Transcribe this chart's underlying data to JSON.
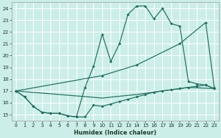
{
  "xlabel": "Humidex (Indice chaleur)",
  "bg_color": "#cceee8",
  "line_color": "#1a7060",
  "grid_color": "#ffffff",
  "xlim": [
    -0.5,
    23.5
  ],
  "ylim": [
    14.5,
    24.5
  ],
  "xticks": [
    0,
    1,
    2,
    3,
    4,
    5,
    6,
    7,
    8,
    9,
    10,
    11,
    12,
    13,
    14,
    15,
    16,
    17,
    18,
    19,
    20,
    21,
    22,
    23
  ],
  "yticks": [
    15,
    16,
    17,
    18,
    19,
    20,
    21,
    22,
    23,
    24
  ],
  "line_jagged_low_x": [
    0,
    1,
    2,
    3,
    4,
    5,
    6,
    7,
    8,
    9,
    10,
    11,
    12,
    13,
    14,
    15,
    16,
    17,
    18,
    19,
    20,
    21,
    22,
    23
  ],
  "line_jagged_low_y": [
    17.0,
    16.5,
    15.7,
    15.2,
    15.1,
    15.1,
    14.9,
    14.8,
    14.8,
    15.8,
    15.7,
    15.9,
    16.1,
    16.3,
    16.5,
    16.7,
    16.9,
    17.0,
    17.1,
    17.2,
    17.3,
    17.4,
    17.5,
    17.2
  ],
  "line_jagged_high_x": [
    0,
    1,
    2,
    3,
    4,
    5,
    6,
    7,
    8,
    9,
    10,
    11,
    12,
    13,
    14,
    15,
    16,
    17,
    18,
    19,
    20,
    21,
    22,
    23
  ],
  "line_jagged_high_y": [
    17.0,
    16.5,
    15.7,
    15.2,
    15.1,
    15.1,
    14.9,
    14.8,
    17.3,
    19.1,
    21.8,
    19.5,
    21.0,
    23.5,
    24.2,
    24.2,
    23.1,
    24.0,
    22.7,
    22.5,
    17.8,
    17.6,
    17.5,
    17.2
  ],
  "line_diag_high_x": [
    0,
    10,
    14,
    19,
    22,
    23
  ],
  "line_diag_high_y": [
    17.0,
    18.3,
    19.2,
    21.0,
    22.8,
    17.3
  ],
  "line_diag_low_x": [
    0,
    10,
    14,
    20,
    23
  ],
  "line_diag_low_y": [
    17.0,
    16.4,
    16.7,
    17.3,
    17.2
  ]
}
